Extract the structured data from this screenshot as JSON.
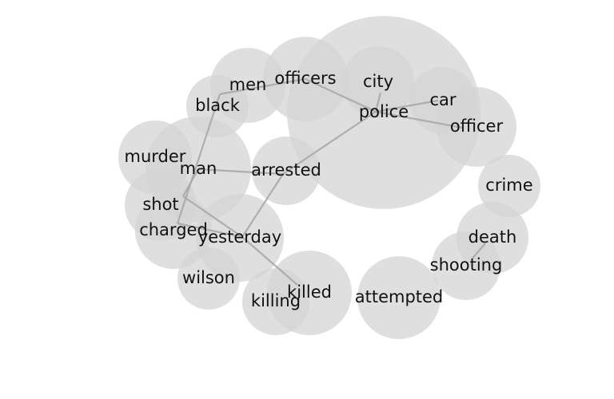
{
  "chart_data": {
    "type": "bubble-network",
    "nodes": [
      {
        "id": "police",
        "label": "police"
      },
      {
        "id": "officers",
        "label": "officers"
      },
      {
        "id": "city",
        "label": "city"
      },
      {
        "id": "car",
        "label": "car"
      },
      {
        "id": "officer",
        "label": "officer"
      },
      {
        "id": "men",
        "label": "men"
      },
      {
        "id": "black",
        "label": "black"
      },
      {
        "id": "murder",
        "label": "murder"
      },
      {
        "id": "man",
        "label": "man"
      },
      {
        "id": "arrested",
        "label": "arrested"
      },
      {
        "id": "shot",
        "label": "shot"
      },
      {
        "id": "charged",
        "label": "charged"
      },
      {
        "id": "yesterday",
        "label": "yesterday"
      },
      {
        "id": "wilson",
        "label": "wilson"
      },
      {
        "id": "killing",
        "label": "killing"
      },
      {
        "id": "killed",
        "label": "killed"
      },
      {
        "id": "attempted",
        "label": "attempted"
      },
      {
        "id": "crime",
        "label": "crime"
      },
      {
        "id": "death",
        "label": "death"
      },
      {
        "id": "shooting",
        "label": "shooting"
      }
    ],
    "edges": [
      [
        "police",
        "officers"
      ],
      [
        "police",
        "city"
      ],
      [
        "police",
        "car"
      ],
      [
        "police",
        "officer"
      ],
      [
        "police",
        "arrested"
      ],
      [
        "officers",
        "black"
      ],
      [
        "black",
        "charged"
      ],
      [
        "man",
        "arrested"
      ],
      [
        "man",
        "shot"
      ],
      [
        "shot",
        "yesterday"
      ],
      [
        "charged",
        "yesterday"
      ],
      [
        "arrested",
        "yesterday"
      ],
      [
        "yesterday",
        "killed"
      ],
      [
        "death",
        "shooting"
      ]
    ]
  }
}
